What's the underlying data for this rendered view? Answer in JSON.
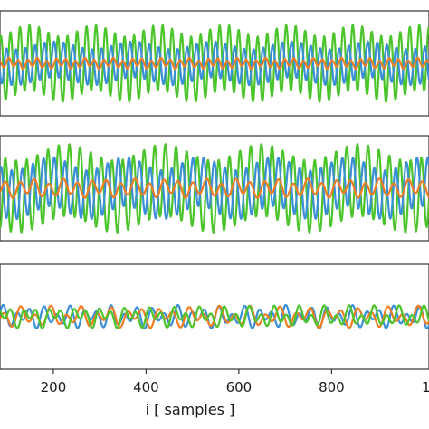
{
  "chart_data": {
    "type": "line",
    "xlabel": "i [ samples ]",
    "x_ticks": [
      200,
      400,
      600,
      800
    ],
    "x_tick_right_partial": "1",
    "xlim": [
      85,
      1010
    ],
    "colors": {
      "blue": "#3a8fd6",
      "orange": "#f07d22",
      "green": "#4cc42c",
      "axes": "#333333"
    },
    "panels": [
      {
        "ylim": [
          -1.6,
          1.6
        ],
        "series": [
          {
            "color": "green",
            "components": [
              {
                "amp": 1.0,
                "period": 20.5,
                "phase": 0.0
              },
              {
                "amp": 0.18,
                "period": 140,
                "phase": 1.2
              }
            ]
          },
          {
            "color": "blue",
            "components": [
              {
                "amp": 0.55,
                "period": 20.5,
                "phase": 2.6
              },
              {
                "amp": 0.12,
                "period": 170,
                "phase": 0.4
              }
            ]
          },
          {
            "color": "orange",
            "components": [
              {
                "amp": 0.12,
                "period": 20.5,
                "phase": 1.1
              },
              {
                "amp": 0.05,
                "period": 55,
                "phase": 2.0
              }
            ]
          }
        ]
      },
      {
        "ylim": [
          -1.6,
          1.6
        ],
        "series": [
          {
            "color": "green",
            "components": [
              {
                "amp": 1.1,
                "period": 23,
                "phase": 0.3
              },
              {
                "amp": 0.25,
                "period": 210,
                "phase": 1.0
              }
            ]
          },
          {
            "color": "blue",
            "components": [
              {
                "amp": 0.75,
                "period": 23,
                "phase": 2.9
              },
              {
                "amp": 0.2,
                "period": 160,
                "phase": 0.2
              }
            ]
          },
          {
            "color": "orange",
            "components": [
              {
                "amp": 0.22,
                "period": 31,
                "phase": 0.7
              },
              {
                "amp": 0.08,
                "period": 75,
                "phase": 1.5
              }
            ]
          }
        ]
      },
      {
        "ylim": [
          -1.6,
          1.6
        ],
        "series": [
          {
            "color": "blue",
            "components": [
              {
                "amp": 0.22,
                "period": 29,
                "phase": 0.5
              },
              {
                "amp": 0.14,
                "period": 47,
                "phase": 1.9
              }
            ]
          },
          {
            "color": "orange",
            "components": [
              {
                "amp": 0.2,
                "period": 33,
                "phase": 2.2
              },
              {
                "amp": 0.14,
                "period": 61,
                "phase": 0.3
              }
            ]
          },
          {
            "color": "green",
            "components": [
              {
                "amp": 0.2,
                "period": 27,
                "phase": 1.4
              },
              {
                "amp": 0.15,
                "period": 53,
                "phase": 2.7
              }
            ]
          }
        ]
      }
    ]
  }
}
